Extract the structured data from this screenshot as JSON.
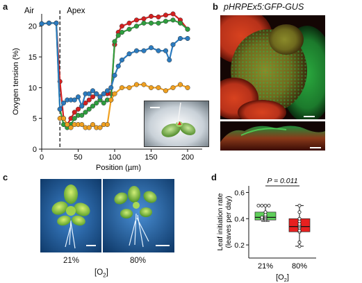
{
  "figure": {
    "panels": {
      "a": {
        "letter": "a",
        "region_air": "Air",
        "region_apex": "Apex",
        "inset_has_scale_bar": true
      },
      "b": {
        "letter": "b",
        "title": "pHRPEx5:GFP-GUS"
      },
      "c": {
        "letter": "c",
        "labels": [
          "21%",
          "80%"
        ],
        "axis_label": "[O2]"
      },
      "d": {
        "letter": "d",
        "p_value": "P = 0.011",
        "axis_label": "[O2]"
      }
    },
    "colors": {
      "red": "#d42020",
      "green": "#2e9e3e",
      "blue": "#2b7bbf",
      "orange": "#f0a020",
      "box_green": "#5fcf5a",
      "box_red": "#e8201f",
      "confocal_red": "#b82b1e",
      "confocal_green": "#1f8a3a"
    }
  },
  "chart_data": [
    {
      "type": "line",
      "panel": "a",
      "xlabel": "Position (µm)",
      "ylabel": "Oxygen tension (%)",
      "xlim": [
        0,
        220
      ],
      "ylim": [
        0,
        22
      ],
      "xticks": [
        0,
        50,
        100,
        150,
        200
      ],
      "yticks": [
        0,
        5,
        10,
        15,
        20
      ],
      "grid": false,
      "vline_x": 25,
      "series": [
        {
          "color": "red",
          "x": [
            0,
            10,
            20,
            25,
            30,
            35,
            40,
            45,
            50,
            55,
            60,
            65,
            70,
            75,
            80,
            85,
            90,
            95,
            100,
            105,
            110,
            120,
            130,
            140,
            150,
            160,
            170,
            180,
            190,
            200
          ],
          "y": [
            20.4,
            20.5,
            20.5,
            11,
            5,
            4,
            5,
            6,
            6.5,
            7,
            7.5,
            8,
            8.5,
            9,
            8.5,
            9,
            9,
            9,
            17,
            19,
            20,
            20.5,
            21,
            21.2,
            21.6,
            21.5,
            21.8,
            22,
            21,
            19.5
          ]
        },
        {
          "color": "green",
          "x": [
            0,
            10,
            20,
            25,
            30,
            35,
            40,
            45,
            50,
            55,
            60,
            65,
            70,
            75,
            80,
            85,
            90,
            95,
            100,
            105,
            110,
            120,
            130,
            140,
            150,
            160,
            170,
            180,
            190,
            200
          ],
          "y": [
            20.4,
            20.5,
            20.5,
            6.5,
            4,
            3.5,
            4,
            5,
            5.5,
            5.5,
            6,
            6.5,
            7,
            7.5,
            8,
            7.5,
            8,
            8,
            17.5,
            18.5,
            19,
            19.5,
            20,
            20.5,
            20.5,
            20.5,
            20.8,
            21,
            20.5,
            19.5
          ]
        },
        {
          "color": "blue",
          "x": [
            0,
            10,
            20,
            25,
            30,
            35,
            40,
            45,
            50,
            55,
            60,
            65,
            70,
            75,
            80,
            85,
            90,
            95,
            100,
            105,
            110,
            120,
            130,
            140,
            150,
            160,
            170,
            175,
            180,
            190,
            200
          ],
          "y": [
            20.4,
            20.5,
            20.5,
            6.5,
            7.5,
            8,
            8,
            8,
            8.5,
            7,
            9,
            9,
            9.5,
            9,
            8.5,
            9,
            9.5,
            10,
            12,
            13.5,
            14.5,
            15.5,
            16,
            16,
            16.5,
            16,
            16,
            14.5,
            17,
            18,
            18
          ]
        },
        {
          "color": "orange",
          "x": [
            25,
            30,
            35,
            40,
            45,
            50,
            55,
            60,
            65,
            70,
            75,
            80,
            85,
            90,
            95,
            100,
            110,
            120,
            130,
            140,
            150,
            160,
            170,
            180,
            190,
            200
          ],
          "y": [
            5,
            5,
            4,
            3.5,
            4,
            4,
            4,
            3.5,
            3.5,
            4,
            3.5,
            3.5,
            4,
            4,
            8,
            9,
            10,
            10,
            10.5,
            10.5,
            10,
            10,
            9.5,
            10,
            10.5,
            10
          ]
        }
      ]
    },
    {
      "type": "box",
      "panel": "d",
      "ylabel": "Leaf initiation rate (leaves per day)",
      "xlabel": "[O2]",
      "categories": [
        "21%",
        "80%"
      ],
      "ylim": [
        0.1,
        0.65
      ],
      "yticks": [
        0.2,
        0.4,
        0.6
      ],
      "grid": false,
      "boxes": [
        {
          "category": "21%",
          "color": "box_green",
          "whisker_low": 0.38,
          "q1": 0.39,
          "median": 0.41,
          "q3": 0.45,
          "whisker_high": 0.5,
          "points": [
            0.39,
            0.4,
            0.4,
            0.41,
            0.41,
            0.42,
            0.43,
            0.45,
            0.5,
            0.5,
            0.5,
            0.5
          ]
        },
        {
          "category": "80%",
          "color": "box_red",
          "whisker_low": 0.19,
          "q1": 0.3,
          "median": 0.34,
          "q3": 0.4,
          "whisker_high": 0.5,
          "points": [
            0.19,
            0.22,
            0.3,
            0.31,
            0.33,
            0.34,
            0.35,
            0.36,
            0.38,
            0.4,
            0.45,
            0.5
          ]
        }
      ],
      "significance": "P = 0.011"
    }
  ]
}
